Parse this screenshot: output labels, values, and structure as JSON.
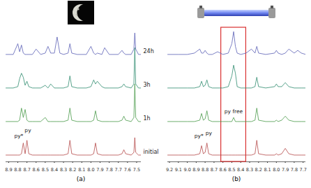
{
  "chart_data": [
    {
      "type": "line",
      "title": "(a)",
      "tick_labels": "x",
      "xlim": [
        8.93,
        7.45
      ],
      "ylim": [
        0,
        100
      ],
      "xticks": [
        8.9,
        8.8,
        8.7,
        8.6,
        8.5,
        8.4,
        8.3,
        8.2,
        8.1,
        {
          "value": 8,
          "label": "8.0"
        },
        7.9,
        7.8,
        7.7,
        7.6,
        7.5
      ],
      "x": [
        8.93,
        8.85,
        8.8,
        8.78,
        8.76,
        8.74,
        8.72,
        8.7,
        8.68,
        8.64,
        8.6,
        8.55,
        8.5,
        8.47,
        8.44,
        8.4,
        8.37,
        8.34,
        8.3,
        8.25,
        8.23,
        8.21,
        8.15,
        8.05,
        8.0,
        7.97,
        7.95,
        7.93,
        7.88,
        7.85,
        7.8,
        7.7,
        7.66,
        7.64,
        7.62,
        7.56,
        7.53,
        7.52,
        7.51,
        7.48,
        7.45
      ],
      "series": [
        {
          "name": "initial",
          "color": "#b54a4a",
          "values": [
            5,
            5,
            5,
            5,
            6,
            14,
            6,
            16,
            6,
            5,
            5,
            5,
            5,
            5,
            5,
            5,
            5,
            5,
            5,
            6,
            16,
            6,
            5,
            5,
            5,
            6,
            14,
            6,
            5,
            5,
            5,
            5,
            6,
            9,
            6,
            5,
            7,
            18,
            7,
            5,
            5
          ]
        },
        {
          "name": "1h",
          "color": "#4a9a4a",
          "values": [
            30,
            30,
            30,
            31,
            40,
            33,
            39,
            31,
            30,
            30,
            30,
            30,
            33,
            30,
            30,
            30,
            30,
            30,
            30,
            31,
            40,
            31,
            30,
            30,
            30,
            31,
            38,
            31,
            30,
            30,
            30,
            30,
            31,
            34,
            31,
            30,
            33,
            58,
            33,
            30,
            30
          ]
        },
        {
          "name": "3h",
          "color": "#2e8b6e",
          "values": [
            55,
            55,
            56,
            62,
            66,
            63,
            57,
            60,
            56,
            55,
            55,
            55,
            57,
            55,
            58,
            55,
            55,
            55,
            55,
            56,
            64,
            56,
            55,
            55,
            56,
            61,
            58,
            60,
            56,
            55,
            55,
            55,
            56,
            58,
            56,
            55,
            58,
            85,
            58,
            55,
            55
          ]
        },
        {
          "name": "24h",
          "color": "#5b5fb5",
          "values": [
            80,
            80,
            88,
            82,
            87,
            81,
            80,
            80,
            80,
            80,
            84,
            80,
            81,
            86,
            81,
            81,
            93,
            81,
            80,
            81,
            88,
            81,
            80,
            80,
            86,
            81,
            80,
            81,
            80,
            85,
            80,
            80,
            83,
            81,
            80,
            80,
            84,
            96,
            84,
            80,
            80
          ]
        }
      ],
      "annotations": [
        {
          "text": "py*",
          "x": 8.79,
          "y": 18
        },
        {
          "text": "py",
          "x": 8.69,
          "y": 22
        }
      ]
    },
    {
      "type": "line",
      "title": "(b)",
      "tick_labels": "x",
      "xlim": [
        9.22,
        7.67
      ],
      "ylim": [
        0,
        100
      ],
      "xticks": [
        9.2,
        9.1,
        {
          "value": 9,
          "label": "9.0"
        },
        8.9,
        8.8,
        8.7,
        8.6,
        8.5,
        8.4,
        8.3,
        8.2,
        8.1,
        {
          "value": 8,
          "label": "8.0"
        },
        7.9,
        7.8,
        7.7
      ],
      "x": [
        9.22,
        9.1,
        9.0,
        8.92,
        8.86,
        8.84,
        8.82,
        8.8,
        8.78,
        8.76,
        8.72,
        8.66,
        8.6,
        8.54,
        8.5,
        8.48,
        8.46,
        8.44,
        8.4,
        8.34,
        8.28,
        8.24,
        8.22,
        8.2,
        8.12,
        8.02,
        8.0,
        7.98,
        7.94,
        7.9,
        7.86,
        7.8,
        7.76,
        7.72,
        7.67
      ],
      "series": [
        {
          "color": "#b54a4a",
          "values": [
            5,
            5,
            5,
            5,
            6,
            12,
            6,
            7,
            14,
            6,
            5,
            5,
            5,
            5,
            5,
            5,
            5,
            5,
            5,
            5,
            5,
            6,
            16,
            6,
            5,
            5,
            6,
            5,
            6,
            10,
            6,
            5,
            5,
            5,
            5
          ]
        },
        {
          "color": "#4a9a4a",
          "values": [
            30,
            30,
            30,
            30,
            31,
            36,
            31,
            32,
            38,
            31,
            30,
            30,
            30,
            30,
            30,
            33,
            30,
            30,
            30,
            30,
            30,
            31,
            40,
            31,
            30,
            30,
            31,
            30,
            31,
            34,
            31,
            30,
            30,
            30,
            30
          ]
        },
        {
          "color": "#2e8b6e",
          "values": [
            55,
            55,
            55,
            55,
            56,
            60,
            56,
            57,
            61,
            56,
            55,
            55,
            55,
            56,
            64,
            72,
            66,
            56,
            55,
            55,
            55,
            56,
            63,
            56,
            55,
            56,
            58,
            56,
            56,
            59,
            56,
            55,
            55,
            55,
            55
          ]
        },
        {
          "color": "#5b5fb5",
          "values": [
            80,
            80,
            80,
            81,
            84,
            81,
            81,
            83,
            81,
            80,
            80,
            82,
            80,
            81,
            88,
            97,
            86,
            81,
            80,
            81,
            84,
            81,
            86,
            81,
            80,
            81,
            83,
            81,
            80,
            81,
            84,
            81,
            83,
            81,
            80
          ]
        }
      ],
      "highlight": {
        "from": 8.62,
        "to": 8.34,
        "color": "#d93030"
      },
      "annotations": [
        {
          "text": "py*",
          "x": 8.87,
          "y": 18
        },
        {
          "text": "py",
          "x": 8.76,
          "y": 20
        },
        {
          "text": "py free",
          "x": 8.48,
          "y": 36
        }
      ]
    }
  ]
}
